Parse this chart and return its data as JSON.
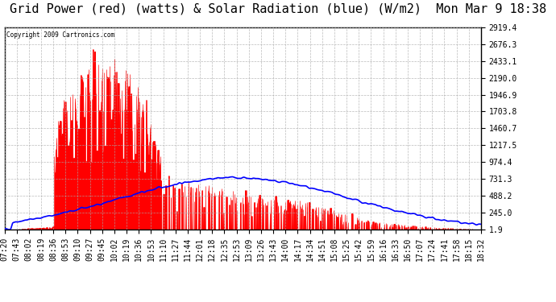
{
  "title": "Grid Power (red) (watts) & Solar Radiation (blue) (W/m2)  Mon Mar 9 18:38",
  "copyright_text": "Copyright 2009 Cartronics.com",
  "y_tick_labels": [
    1.9,
    245.0,
    488.2,
    731.3,
    974.4,
    1217.5,
    1460.7,
    1703.8,
    1946.9,
    2190.0,
    2433.1,
    2676.3,
    2919.4
  ],
  "x_tick_labels": [
    "07:20",
    "07:43",
    "08:02",
    "08:19",
    "08:36",
    "08:53",
    "09:10",
    "09:27",
    "09:45",
    "10:02",
    "10:19",
    "10:36",
    "10:53",
    "11:10",
    "11:27",
    "11:44",
    "12:01",
    "12:18",
    "12:35",
    "12:53",
    "13:09",
    "13:26",
    "13:43",
    "14:00",
    "14:17",
    "14:34",
    "14:51",
    "15:08",
    "15:25",
    "15:42",
    "15:59",
    "16:16",
    "16:33",
    "16:50",
    "17:07",
    "17:24",
    "17:41",
    "17:58",
    "18:15",
    "18:32"
  ],
  "bg_color": "#ffffff",
  "plot_bg_color": "#ffffff",
  "grid_color": "#aaaaaa",
  "red_color": "#ff0000",
  "blue_color": "#0000ff",
  "title_fontsize": 11,
  "tick_fontsize": 7,
  "ymin": 1.9,
  "ymax": 2919.4
}
